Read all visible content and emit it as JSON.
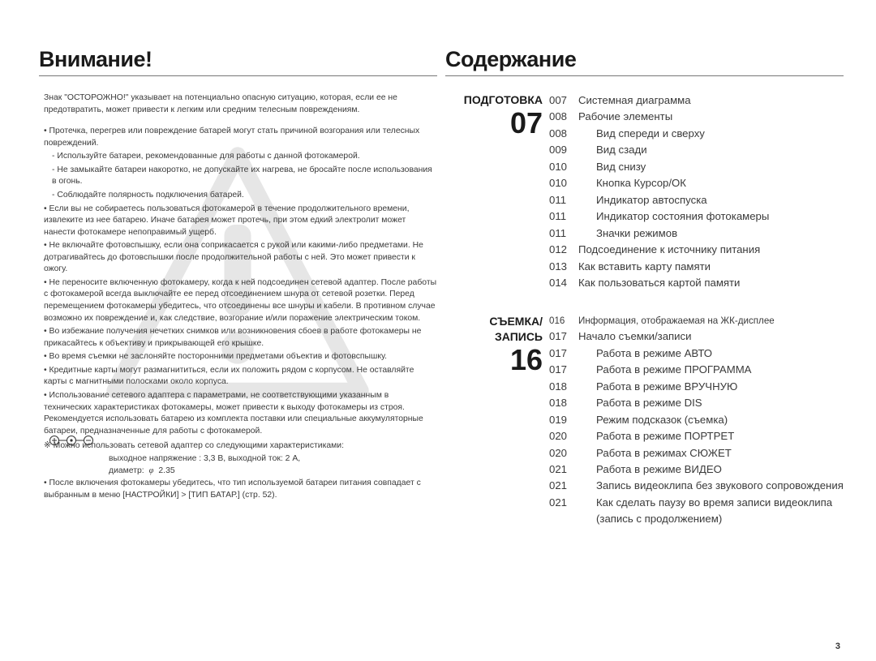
{
  "left": {
    "heading": "Внимание!",
    "intro": "Знак \"ОСТОРОЖНО!\" указывает на потенциально опасную ситуацию, которая, если ее не предотвратить, может привести к легким или средним телесным повреждениям.",
    "b1": "• Протечка, перегрев или повреждение батарей могут стать причиной возгорания или телесных повреждений.",
    "b1s1": "- Используйте батареи, рекомендованные для работы с данной фотокамерой.",
    "b1s2": "- Не замыкайте батареи накоротко, не допускайте их нагрева, не бросайте после использования в огонь.",
    "b1s3": "- Соблюдайте полярность подключения батарей.",
    "b2": "• Если вы не собираетесь пользоваться фотокамерой в течение продолжительного времени, извлеките из нее батарею. Иначе батарея может протечь, при этом едкий электролит может нанести фотокамере непоправимый ущерб.",
    "b3": "• Не включайте фотовспышку, если она соприкасается с рукой или какими-либо предметами. Не дотрагивайтесь до фотовспышки после продолжительной работы с ней. Это может привести к ожогу.",
    "b4": "• Не переносите включенную фотокамеру, когда к ней подсоединен сетевой адаптер. После работы с фотокамерой всегда выключайте ее перед отсоединением шнура от сетевой розетки. Перед перемещением фотокамеры убедитесь, что отсоединены все шнуры и кабели. В противном случае возможно их повреждение и, как следствие, возгорание и/или поражение электрическим током.",
    "b5": "• Во избежание получения нечетких снимков или возникновения сбоев в работе фотокамеры не прикасайтесь к объективу и прикрывающей его крышке.",
    "b6": "• Во время съемки не заслоняйте посторонними предметами объектив и фотовспышку.",
    "b7": "• Кредитные карты могут размагнититься, если их положить рядом с корпусом. Не оставляйте карты с магнитными полосками около корпуса.",
    "b8": "• Использование сетевого адаптера с параметрами, не соответствующими указанным в технических характеристиках фотокамеры, может привести к выходу фотокамеры из строя. Рекомендуется использовать батарею из комплекта поставки или специальные аккумуляторные батареи, предназначенные для работы с фотокамерой.",
    "note": "※ Можно использовать сетевой адаптер со следующими характеристиками:",
    "spec1": "выходное напряжение : 3,3 В,  выходной ток: 2 А,",
    "spec2a": "диаметр:",
    "spec2b": "2.35",
    "b9": "• После включения фотокамеры убедитесь, что тип используемой батареи питания совпадает с выбранным в меню [НАСТРОЙКИ] > [ТИП БАТАР.] (стр. 52)."
  },
  "right": {
    "heading": "Содержание",
    "sec1": {
      "title": "ПОДГОТОВКА",
      "num": "07",
      "items": [
        {
          "pg": "007",
          "txt": "Системная диаграмма",
          "indent": false
        },
        {
          "pg": "008",
          "txt": "Рабочие элементы",
          "indent": false
        },
        {
          "pg": "008",
          "txt": "Вид спереди и сверху",
          "indent": true
        },
        {
          "pg": "009",
          "txt": "Вид сзади",
          "indent": true
        },
        {
          "pg": "010",
          "txt": "Вид снизу",
          "indent": true
        },
        {
          "pg": "010",
          "txt": "Кнопка Курсор/ОК",
          "indent": true
        },
        {
          "pg": "011",
          "txt": "Индикатор автоспуска",
          "indent": true
        },
        {
          "pg": "011",
          "txt": "Индикатор состояния фотокамеры",
          "indent": true
        },
        {
          "pg": "011",
          "txt": "Значки режимов",
          "indent": true
        },
        {
          "pg": "012",
          "txt": "Подсоединение к источнику питания",
          "indent": false
        },
        {
          "pg": "013",
          "txt": "Как вставить карту памяти",
          "indent": false
        },
        {
          "pg": "014",
          "txt": "Как пользоваться картой памяти",
          "indent": false
        }
      ]
    },
    "sec2": {
      "title1": "СЪЕМКА/",
      "title2": "ЗАПИСЬ",
      "num": "16",
      "items": [
        {
          "pg": "016",
          "txt": "Информация, отображаемая на ЖК-дисплее",
          "indent": false,
          "small": true
        },
        {
          "pg": "017",
          "txt": "Начало съемки/записи",
          "indent": false
        },
        {
          "pg": "017",
          "txt": "Работа в режиме АВТО",
          "indent": true
        },
        {
          "pg": "017",
          "txt": "Работа в режиме ПРОГРАММА",
          "indent": true
        },
        {
          "pg": "018",
          "txt": "Работа в режиме ВРУЧНУЮ",
          "indent": true
        },
        {
          "pg": "018",
          "txt": "Работа в режиме DIS",
          "indent": true
        },
        {
          "pg": "019",
          "txt": "Режим подсказок (съемка)",
          "indent": true
        },
        {
          "pg": "020",
          "txt": "Работа в режиме ПОРТРЕТ",
          "indent": true
        },
        {
          "pg": "020",
          "txt": "Работа в режимах СЮЖЕТ",
          "indent": true
        },
        {
          "pg": "021",
          "txt": "Работа в режиме ВИДЕО",
          "indent": true
        },
        {
          "pg": "021",
          "txt": "Запись видеоклипа без звукового сопровождения",
          "indent": true
        },
        {
          "pg": "021",
          "txt": "Как сделать паузу во время записи видеоклипа (запись с продолжением)",
          "indent": true
        }
      ]
    }
  },
  "page_number": "3",
  "colors": {
    "text": "#3a3a3a",
    "heading": "#1a1a1a",
    "rule": "#777777",
    "watermark": "#e6e6e6",
    "background": "#ffffff"
  }
}
